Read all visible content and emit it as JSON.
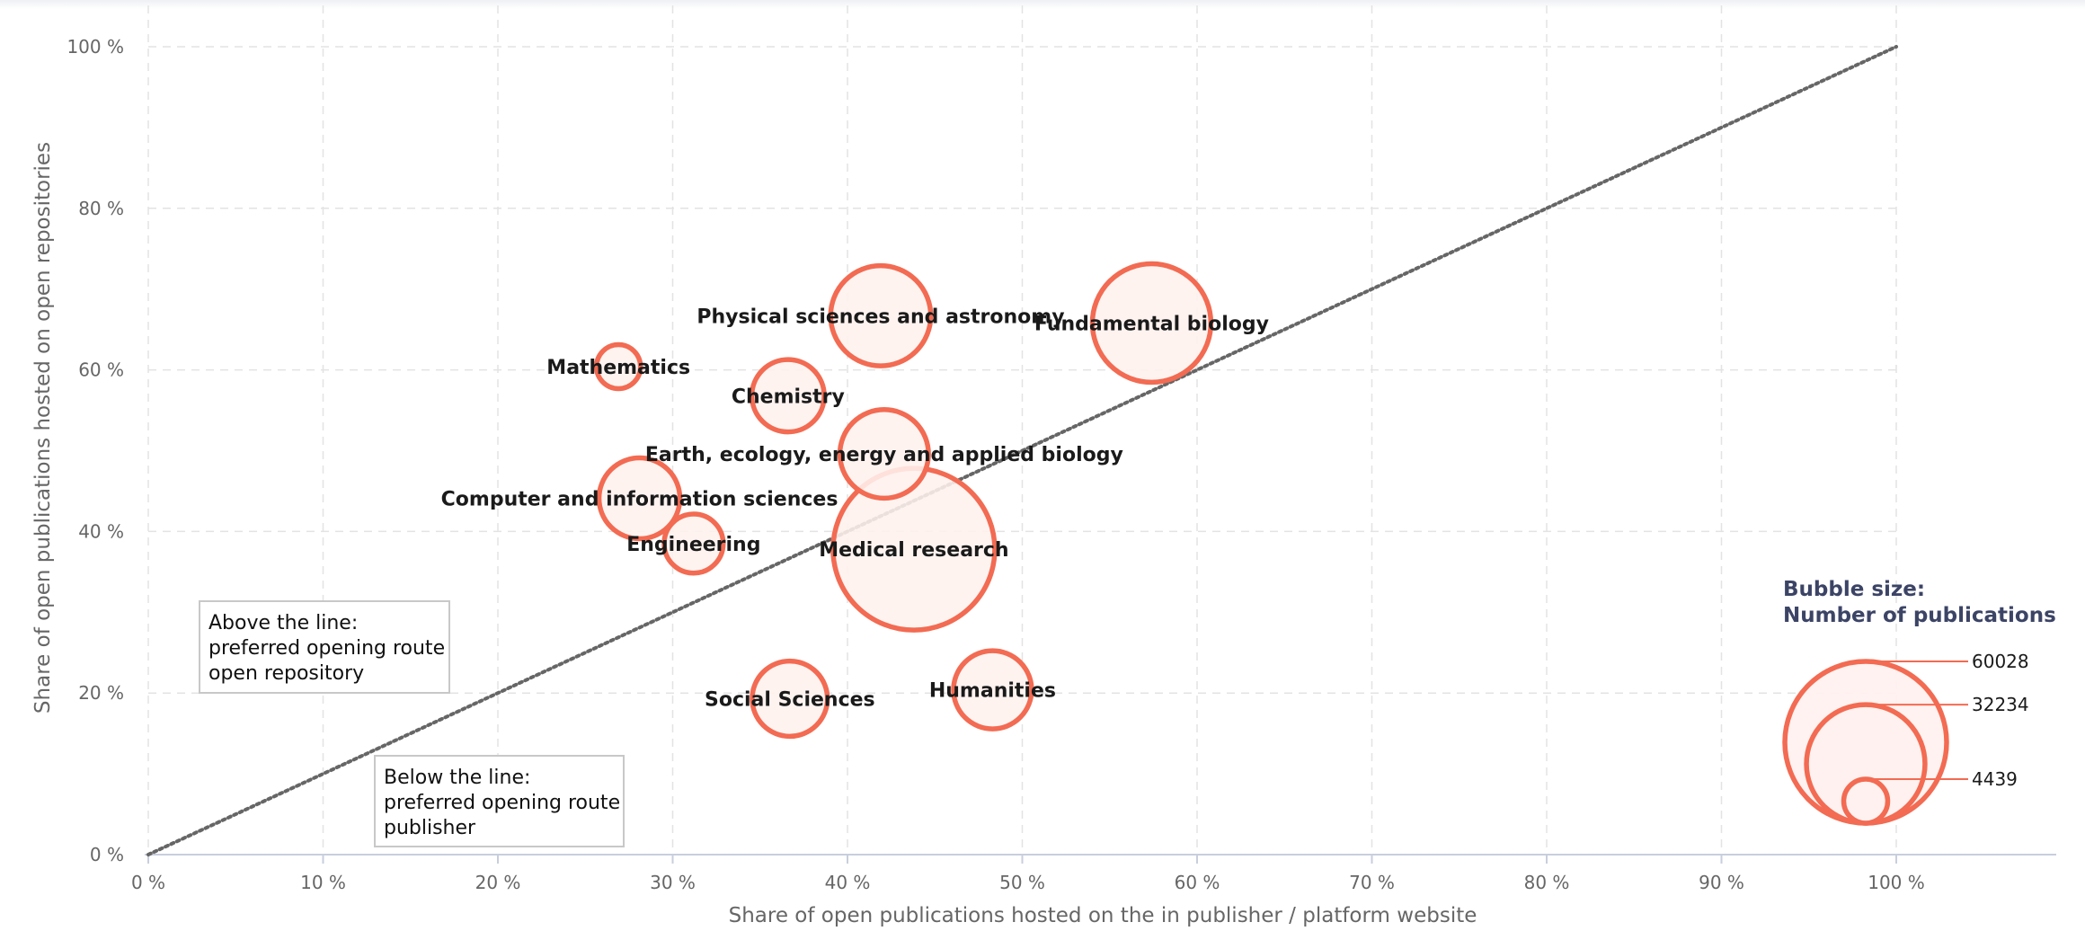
{
  "chart_data": {
    "type": "scatter",
    "subtype": "bubble",
    "xlabel": "Share of open publications hosted on the in publisher / platform website",
    "ylabel": "Share of open publications hosted on open repositories",
    "xlim": [
      0,
      1
    ],
    "ylim": [
      0,
      1
    ],
    "x_ticks": [
      "0 %",
      "10 %",
      "20 %",
      "30 %",
      "40 %",
      "50 %",
      "60 %",
      "70 %",
      "80 %",
      "90 %",
      "100 %"
    ],
    "y_ticks": [
      "0 %",
      "20 %",
      "40 %",
      "60 %",
      "80 %",
      "100 %"
    ],
    "grid": true,
    "reference_line": {
      "type": "diagonal",
      "from": [
        0,
        0
      ],
      "to": [
        1,
        1
      ],
      "style": "dotted"
    },
    "bubble_color": "#f26b52",
    "bubble_fill": "#fff1ee",
    "points": [
      {
        "label": "Mathematics",
        "x": 0.269,
        "y": 0.604,
        "size": 4439
      },
      {
        "label": "Physical sciences and astronomy",
        "x": 0.419,
        "y": 0.667,
        "size": 23000
      },
      {
        "label": "Fundamental biology",
        "x": 0.574,
        "y": 0.658,
        "size": 32234
      },
      {
        "label": "Chemistry",
        "x": 0.366,
        "y": 0.568,
        "size": 12000
      },
      {
        "label": "Earth, ecology, energy and applied biology",
        "x": 0.421,
        "y": 0.496,
        "size": 18000
      },
      {
        "label": "Computer and information sciences",
        "x": 0.281,
        "y": 0.441,
        "size": 15000
      },
      {
        "label": "Engineering",
        "x": 0.312,
        "y": 0.385,
        "size": 8000
      },
      {
        "label": "Medical research",
        "x": 0.438,
        "y": 0.378,
        "size": 60028
      },
      {
        "label": "Social Sciences",
        "x": 0.367,
        "y": 0.193,
        "size": 13000
      },
      {
        "label": "Humanities",
        "x": 0.483,
        "y": 0.204,
        "size": 14000
      }
    ],
    "legend": {
      "title_lines": [
        "Bubble size:",
        "Number of publications"
      ],
      "values": [
        60028,
        32234,
        4439
      ],
      "placement": "bottom-right"
    },
    "annotations": [
      {
        "name": "above-line",
        "lines": [
          "Above the line:",
          "preferred opening route",
          "open repository"
        ]
      },
      {
        "name": "below-line",
        "lines": [
          "Below the line:",
          "preferred opening route",
          "publisher"
        ]
      }
    ]
  }
}
